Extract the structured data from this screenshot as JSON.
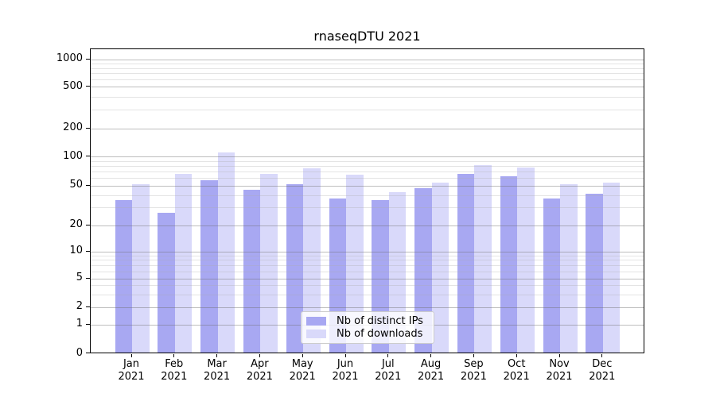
{
  "title": "rnaseqDTU 2021",
  "legend": {
    "items": [
      {
        "label": "Nb of distinct IPs",
        "color": "#a8a8f2"
      },
      {
        "label": "Nb of downloads",
        "color": "#d9d9fa"
      }
    ]
  },
  "chart_data": {
    "type": "bar",
    "title": "rnaseqDTU 2021",
    "categories": [
      "Jan",
      "Feb",
      "Mar",
      "Apr",
      "May",
      "Jun",
      "Jul",
      "Aug",
      "Sep",
      "Oct",
      "Nov",
      "Dec"
    ],
    "category_year": "2021",
    "series": [
      {
        "name": "Nb of distinct IPs",
        "color": "#a8a8f2",
        "values": [
          36,
          27,
          57,
          46,
          52,
          37,
          36,
          47,
          67,
          63,
          37,
          42
        ]
      },
      {
        "name": "Nb of downloads",
        "color": "#d9d9fa",
        "values": [
          52,
          67,
          112,
          67,
          76,
          65,
          43,
          54,
          82,
          77,
          52,
          54
        ]
      }
    ],
    "yscale": "log with 0 baseline",
    "ylim": [
      0,
      1300
    ],
    "y_ticks": [
      0,
      1,
      2,
      5,
      10,
      20,
      50,
      100,
      200,
      500,
      1000
    ],
    "y_minor_gridlines": [
      3,
      4,
      6,
      7,
      8,
      9,
      30,
      40,
      60,
      70,
      80,
      90,
      300,
      400,
      600,
      700,
      800,
      900
    ],
    "grid": "horizontal major and minor, drawn over bars",
    "legend_position": "inside axes, bottom center"
  }
}
